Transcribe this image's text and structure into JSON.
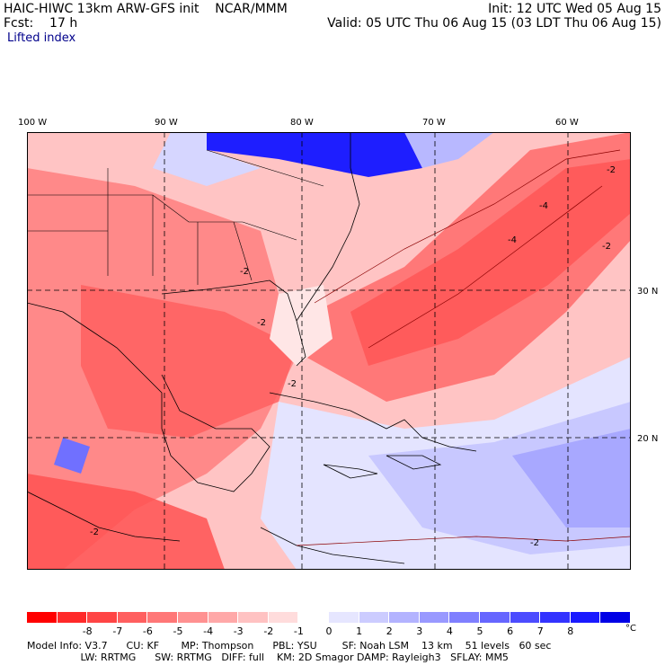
{
  "header": {
    "left_line1": "HAIC-HIWC 13km ARW-GFS init    NCAR/MMM",
    "left_line2": "Fcst:    17 h",
    "right_line1": "Init: 12 UTC Wed 05 Aug 15",
    "right_line2": "Valid: 05 UTC Thu 06 Aug 15 (03 LDT Thu 06 Aug 15)",
    "field_name": "Lifted index"
  },
  "map": {
    "lon_labels": [
      "100 W",
      "90 W",
      "80 W",
      "70 W",
      "60 W"
    ],
    "lat_labels": [
      "30 N",
      "20 N"
    ],
    "contour_labels": [
      "-2",
      "-2",
      "-2",
      "-2",
      "-4",
      "-4",
      "-2",
      "-2",
      "-2"
    ]
  },
  "colorbar": {
    "colors": [
      "#ff0000",
      "#ff2a2a",
      "#ff4545",
      "#ff5f5f",
      "#ff7777",
      "#ff9191",
      "#ffa8a8",
      "#ffc2c2",
      "#ffdcdc",
      "#ffffff",
      "#e6e6ff",
      "#ccccff",
      "#b3b3ff",
      "#9999ff",
      "#7f7fff",
      "#6666ff",
      "#4c4cff",
      "#3333ff",
      "#1a1aff",
      "#0000e6"
    ],
    "ticks": [
      "-8",
      "-7",
      "-6",
      "-5",
      "-4",
      "-3",
      "-2",
      "-1",
      "0",
      "1",
      "2",
      "3",
      "4",
      "5",
      "6",
      "7",
      "8"
    ],
    "unit": "°C"
  },
  "model_info": {
    "line1": "Model Info: V3.7      CU: KF       MP: Thompson      PBL: YSU        SF: Noah LSM    13 km    51 levels   60 sec",
    "line2": "                 LW: RRTMG      SW: RRTMG   DIFF: full    KM: 2D Smagor DAMP: Rayleigh3   SFLAY: MM5"
  }
}
